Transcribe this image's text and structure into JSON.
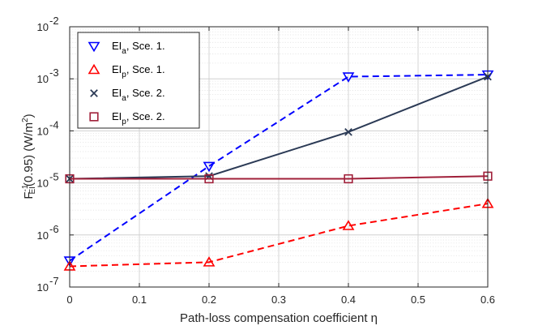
{
  "chart_data": {
    "type": "line",
    "xlabel": "Path-loss compensation coefficient η",
    "ylabel": "F_EI^-1(0.95) (W/m^2)",
    "x_ticks": [
      "0",
      "0.1",
      "0.2",
      "0.3",
      "0.4",
      "0.5",
      "0.6"
    ],
    "y_ticks": [
      {
        "base": "10",
        "exp": "-7"
      },
      {
        "base": "10",
        "exp": "-6"
      },
      {
        "base": "10",
        "exp": "-5"
      },
      {
        "base": "10",
        "exp": "-4"
      },
      {
        "base": "10",
        "exp": "-3"
      },
      {
        "base": "10",
        "exp": "-2"
      }
    ],
    "xlim": [
      0,
      0.6
    ],
    "ylim": [
      1e-07,
      0.01
    ],
    "yscale": "log",
    "grid": true,
    "legend_position": "top-left",
    "series": [
      {
        "name": "EI_a, Sce. 1.",
        "legend_main": "EI",
        "legend_sub": "a",
        "legend_rest": ", Sce. 1.",
        "marker": "triangle-down",
        "line": "dashed",
        "color": "#0000FF",
        "x": [
          0,
          0.2,
          0.4,
          0.6
        ],
        "y": [
          3.2e-07,
          2.1e-05,
          0.0011,
          0.0012
        ]
      },
      {
        "name": "EI_p, Sce. 1.",
        "legend_main": "EI",
        "legend_sub": "p",
        "legend_rest": ", Sce. 1.",
        "marker": "triangle-up",
        "line": "dashed",
        "color": "#FF0000",
        "x": [
          0,
          0.2,
          0.4,
          0.6
        ],
        "y": [
          2.5e-07,
          3e-07,
          1.5e-06,
          4e-06
        ]
      },
      {
        "name": "EI_a, Sce. 2.",
        "legend_main": "EI",
        "legend_sub": "a",
        "legend_rest": ", Sce. 2.",
        "marker": "x",
        "line": "solid",
        "color": "#2B3A55",
        "x": [
          0,
          0.2,
          0.4,
          0.6
        ],
        "y": [
          1.2e-05,
          1.35e-05,
          9.5e-05,
          0.0011
        ]
      },
      {
        "name": "EI_p, Sce. 2.",
        "legend_main": "EI",
        "legend_sub": "p",
        "legend_rest": ", Sce. 2.",
        "marker": "square",
        "line": "solid",
        "color": "#A0203A",
        "x": [
          0,
          0.2,
          0.4,
          0.6
        ],
        "y": [
          1.2e-05,
          1.2e-05,
          1.2e-05,
          1.35e-05
        ]
      }
    ]
  }
}
